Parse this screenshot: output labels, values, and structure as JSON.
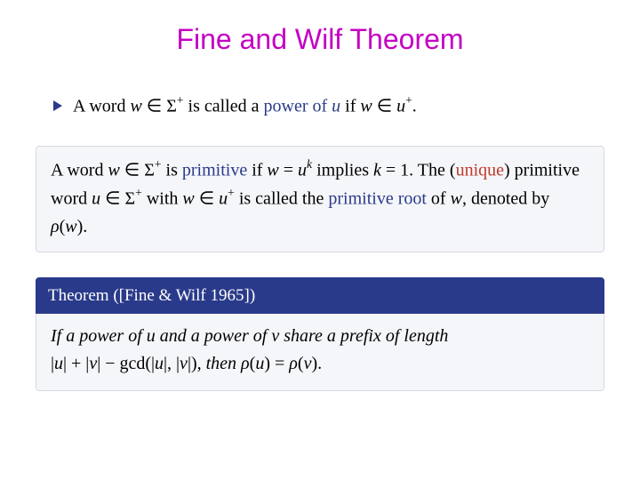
{
  "title": {
    "text": "Fine and Wilf Theorem",
    "color": "#c400c4",
    "fontsize": 32
  },
  "colors": {
    "bullet": "#2a3a8a",
    "highlight": "#2a3a8a",
    "warn": "#c0392b",
    "text": "#333333",
    "block_bg": "#f5f6fa",
    "block_border": "#d8d8e0",
    "theorem_header_bg": "#2a3a8a",
    "theorem_header_fg": "#ffffff"
  },
  "def_power": {
    "t1": "A word ",
    "w": "w",
    "in1": " ∈ Σ",
    "plus1": "+",
    "t2": " is called a ",
    "hl": "power of ",
    "u": "u",
    "t3": " if ",
    "w2": "w",
    "in2": " ∈ ",
    "u2": "u",
    "plus2": "+",
    "dot": "."
  },
  "def_primitive": {
    "t1": "A word ",
    "w": "w",
    "in1": " ∈ Σ",
    "plus1": "+",
    "t2": " is ",
    "hl1": "primitive",
    "t3": " if ",
    "w2": "w",
    "eq": " = ",
    "u": "u",
    "k": "k",
    "t4": " implies ",
    "k2": "k",
    "eq2": " = 1",
    "t5": ". The (",
    "unique": "unique",
    "t6": ") primitive word ",
    "u2": "u",
    "in2": " ∈ Σ",
    "plus2": "+",
    "t7": " with ",
    "w3": "w",
    "in3": " ∈ ",
    "u3": "u",
    "plus3": "+",
    "t8": " is called the ",
    "hl2": "primitive root",
    "t9": " of ",
    "w4": "w",
    "t10": ", denoted by ",
    "rho": "ρ",
    "lp": "(",
    "w5": "w",
    "rp": ")."
  },
  "theorem": {
    "header": "Theorem ([Fine & Wilf 1965])",
    "t1": "If a power of ",
    "u": "u",
    "t2": " and a power of ",
    "v": "v",
    "t3": " share a prefix of length ",
    "lhs_open": "|",
    "u2": "u",
    "lhs_mid1": "| + |",
    "v2": "v",
    "lhs_mid2": "| − gcd(|",
    "u3": "u",
    "lhs_mid3": "|, |",
    "v3": "v",
    "lhs_close": "|)",
    "t4": ", then ",
    "rho1": "ρ",
    "lp1": "(",
    "u4": "u",
    "rp1": ")",
    "eq": " = ",
    "rho2": "ρ",
    "lp2": "(",
    "v4": "v",
    "rp2": ")."
  }
}
